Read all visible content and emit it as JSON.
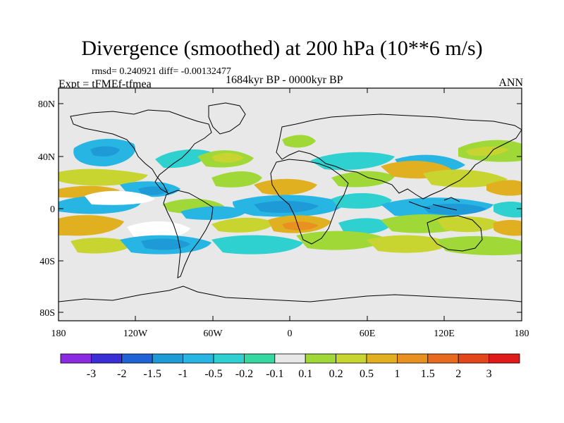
{
  "figure": {
    "title": "Divergence (smoothed) at 200 hPa (10**6 m/s)",
    "stats": "rmsd= 0.240921 diff= -0.00132477",
    "experiment": "Expt = tFMEf-tfmea",
    "period": "1684kyr BP - 0000kyr BP",
    "season": "ANN"
  },
  "axes": {
    "y_ticks": [
      "80N",
      "40N",
      "0",
      "40S",
      "80S"
    ],
    "x_ticks": [
      "180",
      "120W",
      "60W",
      "0",
      "60E",
      "120E",
      "180"
    ]
  },
  "colorbar": {
    "colors": [
      "#8a2be2",
      "#3a2fd6",
      "#1f63d6",
      "#1e9ad6",
      "#27b5e3",
      "#2ed0d0",
      "#34d8a0",
      "#e8e8e8",
      "#a0d838",
      "#c8d430",
      "#e0b020",
      "#e89020",
      "#e86a1e",
      "#e4461c",
      "#e01a1a"
    ],
    "labels": [
      "-3",
      "-2",
      "-1.5",
      "-1",
      "-0.5",
      "-0.2",
      "-0.1",
      "0.1",
      "0.2",
      "0.5",
      "1",
      "1.5",
      "2",
      "3"
    ]
  }
}
